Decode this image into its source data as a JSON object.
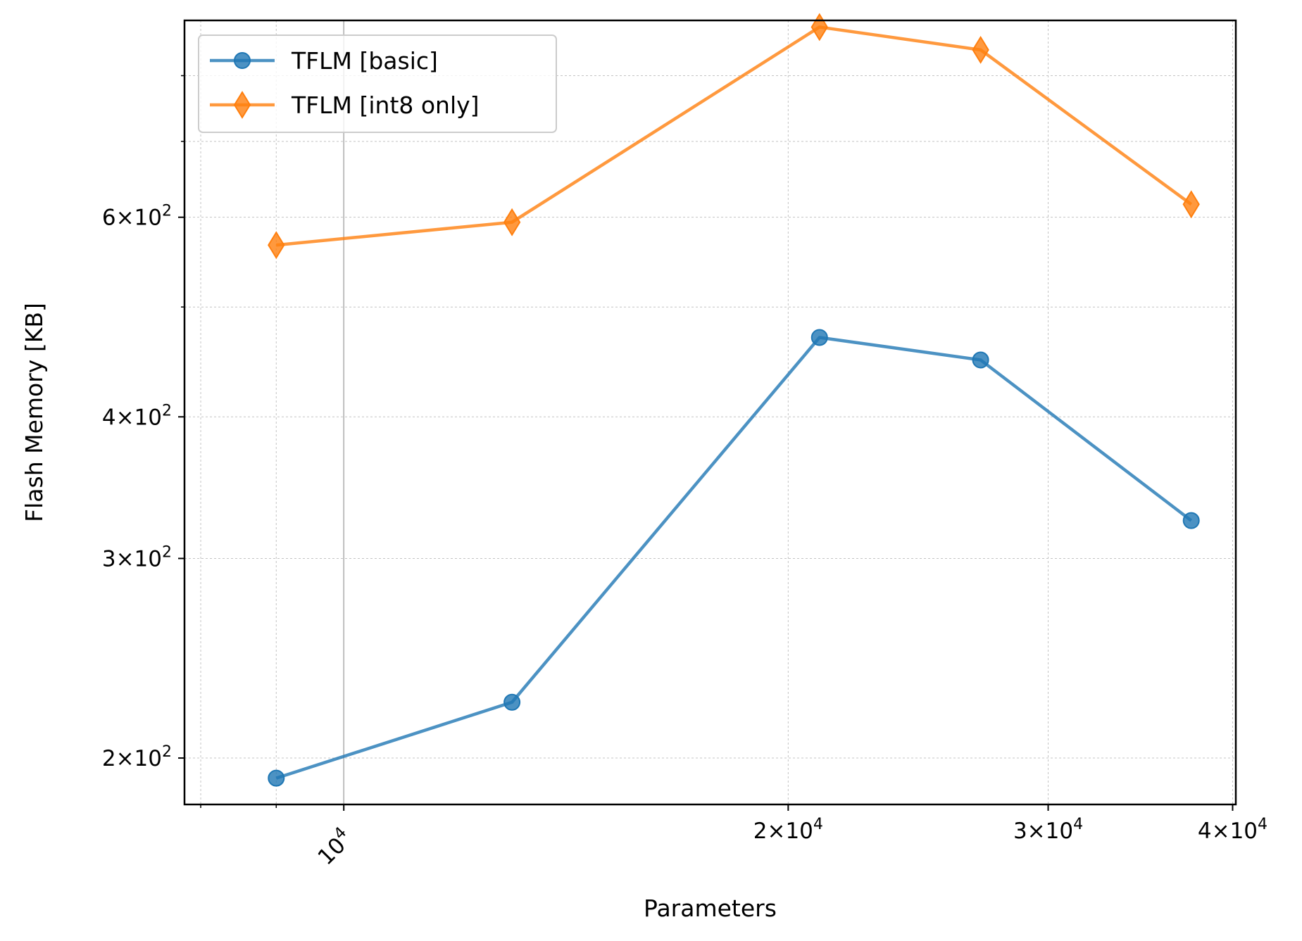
{
  "chart_data": {
    "type": "line",
    "xlabel": "Parameters",
    "ylabel": "Flash Memory [KB]",
    "xscale": "log",
    "yscale": "log",
    "xlim": [
      7800,
      40200
    ],
    "ylim": [
      182,
      895
    ],
    "grid": true,
    "legend_position": "top-left",
    "x_major_ticks": [
      {
        "value": 10000,
        "base": "10",
        "exp": "4",
        "mult": ""
      },
      {
        "value": 20000,
        "base": "10",
        "exp": "4",
        "mult": "2"
      },
      {
        "value": 30000,
        "base": "10",
        "exp": "4",
        "mult": "3"
      },
      {
        "value": 40000,
        "base": "10",
        "exp": "4",
        "mult": "4"
      }
    ],
    "x_minor_ticks": [
      8000,
      9000
    ],
    "y_major_ticks": [
      {
        "value": 200,
        "base": "10",
        "exp": "2",
        "mult": "2"
      },
      {
        "value": 300,
        "base": "10",
        "exp": "2",
        "mult": "3"
      },
      {
        "value": 400,
        "base": "10",
        "exp": "2",
        "mult": "4"
      },
      {
        "value": 600,
        "base": "10",
        "exp": "2",
        "mult": "6"
      }
    ],
    "y_minor_ticks": [
      500,
      700,
      800
    ],
    "series": [
      {
        "name": "TFLM [basic]",
        "color": "#1f77b4",
        "marker": "circle",
        "x": [
          9000,
          13000,
          21000,
          27000,
          37500
        ],
        "y": [
          192,
          224,
          470,
          449,
          324
        ]
      },
      {
        "name": "TFLM [int8 only]",
        "color": "#ff7f0e",
        "marker": "diamond",
        "x": [
          9000,
          13000,
          21000,
          27000,
          37500
        ],
        "y": [
          567,
          594,
          883,
          843,
          616
        ]
      }
    ]
  }
}
